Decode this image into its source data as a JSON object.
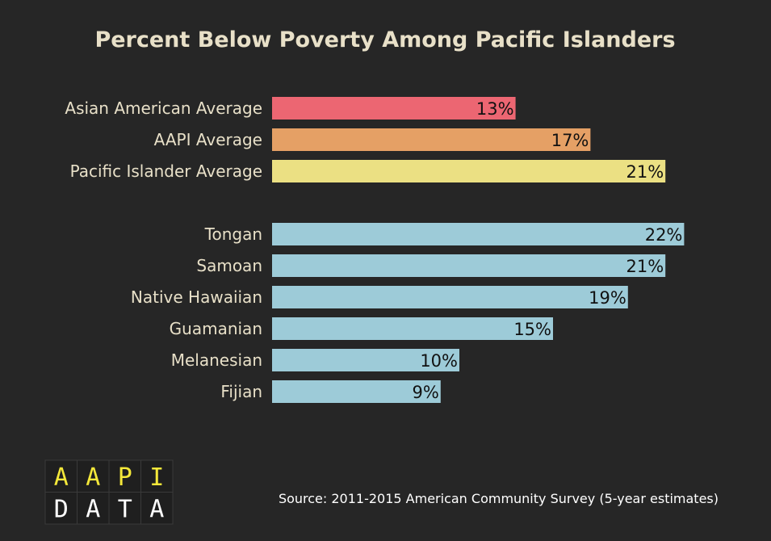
{
  "chart_data": {
    "type": "bar",
    "orientation": "horizontal",
    "title": "Percent Below Poverty Among Pacific Islanders",
    "categories": [
      "Asian American Average",
      "AAPI Average",
      "Pacific Islander Average",
      "Tongan",
      "Samoan",
      "Native Hawaiian",
      "Guamanian",
      "Melanesian",
      "Fijian"
    ],
    "values": [
      13,
      17,
      21,
      22,
      21,
      19,
      15,
      10,
      9
    ],
    "value_labels": [
      "13%",
      "17%",
      "21%",
      "22%",
      "21%",
      "19%",
      "15%",
      "10%",
      "9%"
    ],
    "bar_colors": [
      "#ec6672",
      "#e5a065",
      "#ebe083",
      "#9dcbd8",
      "#9dcbd8",
      "#9dcbd8",
      "#9dcbd8",
      "#9dcbd8",
      "#9dcbd8"
    ],
    "groups": [
      [
        0,
        1,
        2
      ],
      [
        3,
        4,
        5,
        6,
        7,
        8
      ]
    ],
    "xlim": [
      0,
      22
    ],
    "grid": false,
    "legend": "none"
  },
  "source": "Source: 2011-2015 American Community Survey (5-year estimates)",
  "logo": {
    "row1": [
      "A",
      "A",
      "P",
      "I"
    ],
    "row2": [
      "D",
      "A",
      "T",
      "A"
    ],
    "row1_color": "#f4e83a",
    "row2_color": "#ffffff"
  }
}
